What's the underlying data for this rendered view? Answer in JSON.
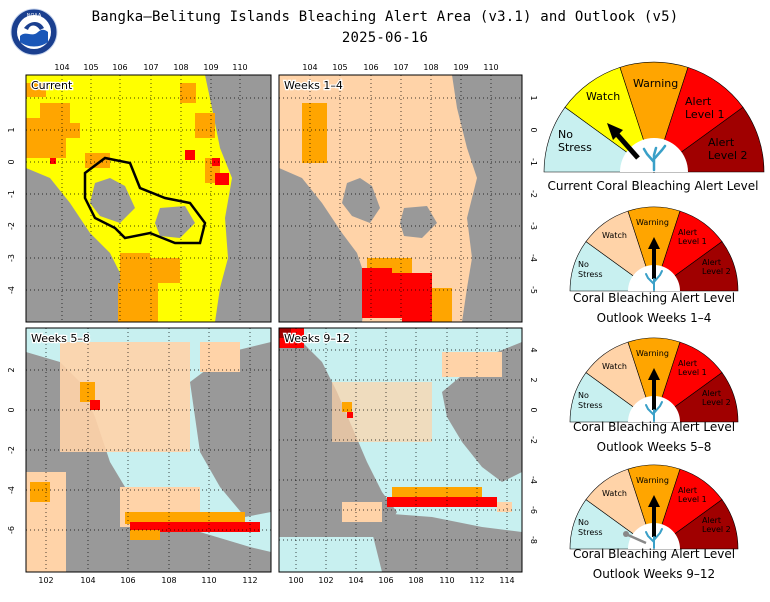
{
  "header": {
    "title": "Bangka–Belitung Islands Bleaching Alert Area (v3.1) and Outlook (v5)",
    "date": "2025-06-16",
    "logo_text": "NOAA"
  },
  "colors": {
    "no_stress": "#c8f0f0",
    "watch": "#ffff00",
    "watch_outlook": "#ffd3a8",
    "warning": "#ffa500",
    "alert1": "#ff0000",
    "alert2": "#a00000",
    "land": "#999999"
  },
  "legend_labels": {
    "no_stress": [
      "No",
      "Stress"
    ],
    "watch": [
      "Watch"
    ],
    "warning": [
      "Warning"
    ],
    "alert1": [
      "Alert",
      "Level 1"
    ],
    "alert2": [
      "Alert",
      "Level 2"
    ]
  },
  "maps": [
    {
      "id": "current",
      "label": "Current",
      "top_ticks": [
        "104",
        "105",
        "106",
        "107",
        "108",
        "109",
        "110"
      ],
      "right_ticks": [
        "1",
        "0",
        "-1",
        "-2",
        "-3",
        "-4",
        "-5"
      ],
      "left_ticks": [
        "1",
        "0",
        "-1",
        "-2",
        "-3",
        "-4",
        "-5"
      ]
    },
    {
      "id": "w1-4",
      "label": "Weeks 1–4",
      "top_ticks": [
        "104",
        "105",
        "106",
        "107",
        "108",
        "109",
        "110"
      ],
      "right_ticks": [
        "1",
        "0",
        "-1",
        "-2",
        "-3",
        "-4",
        "-5"
      ],
      "left_ticks": []
    },
    {
      "id": "w5-8",
      "label": "Weeks 5–8",
      "bottom_ticks": [
        "102",
        "104",
        "106",
        "108",
        "110",
        "112"
      ],
      "left_ticks": [
        "2",
        "0",
        "-2",
        "-4",
        "-6"
      ],
      "right_ticks": []
    },
    {
      "id": "w9-12",
      "label": "Weeks 9–12",
      "bottom_ticks": [
        "100",
        "102",
        "104",
        "106",
        "108",
        "110",
        "112",
        "114"
      ],
      "right_ticks": [
        "4",
        "2",
        "0",
        "-2",
        "-4",
        "-6",
        "-8"
      ],
      "left_ticks": []
    }
  ],
  "gauges": [
    {
      "caption_lines": [
        "Current Coral Bleaching Alert Level"
      ],
      "level": "watch",
      "arrow_angle_deg": 132
    },
    {
      "caption_lines": [
        "Coral Bleaching Alert Level",
        "Outlook Weeks 1–4"
      ],
      "level": "warning",
      "arrow_angle_deg": 90
    },
    {
      "caption_lines": [
        "Coral Bleaching Alert Level",
        "Outlook Weeks 5–8"
      ],
      "level": "warning",
      "arrow_angle_deg": 90
    },
    {
      "caption_lines": [
        "Coral Bleaching Alert Level",
        "Outlook Weeks 9–12"
      ],
      "level": "warning",
      "arrow_angle_deg": 90,
      "secondary_arrow_angle_deg": 155
    }
  ]
}
